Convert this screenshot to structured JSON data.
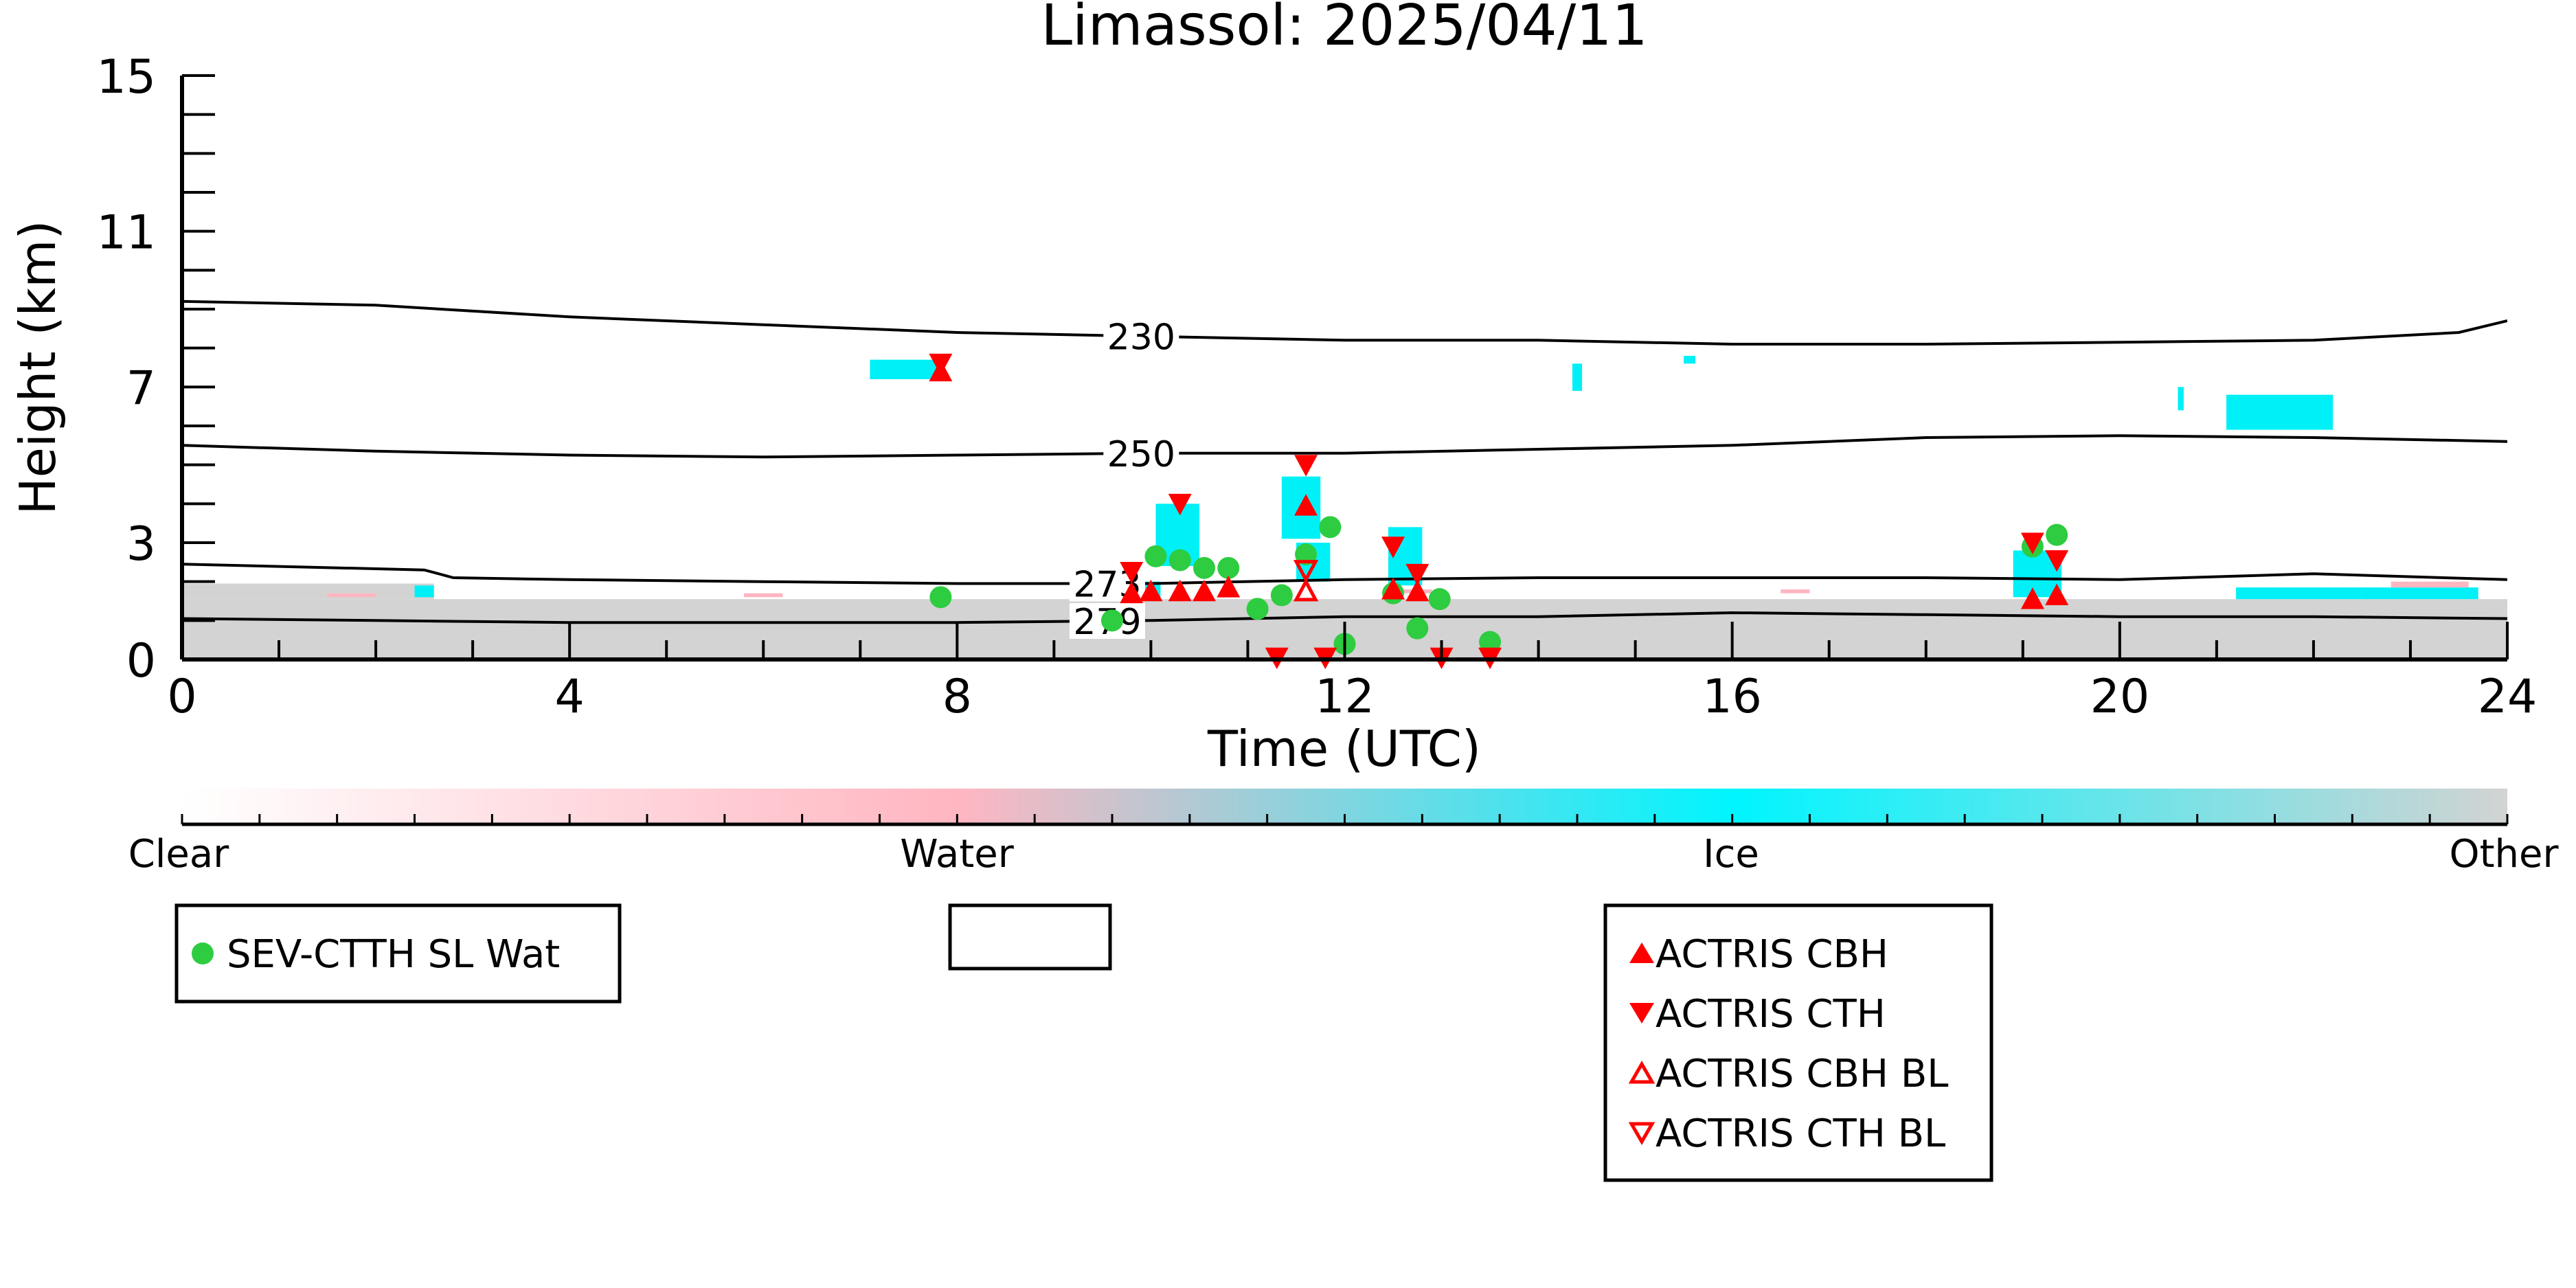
{
  "chart_data": {
    "type": "scatter",
    "title": "Limassol: 2025/04/11",
    "xlabel": "Time (UTC)",
    "ylabel": "Height (km)",
    "xlim": [
      0,
      24
    ],
    "ylim": [
      0,
      15
    ],
    "x_ticks": [
      0,
      4,
      8,
      12,
      16,
      20,
      24
    ],
    "y_ticks": [
      0,
      3,
      7,
      11,
      15
    ],
    "grid": false,
    "colorbar": {
      "labels": [
        "Clear",
        "Water",
        "Ice",
        "Other"
      ],
      "colors": [
        "#ffffff",
        "#ffb6c1",
        "#00f5ff",
        "#d3d3d3"
      ]
    },
    "colors": {
      "sev": "#2ecc40",
      "actris": "#ff0000",
      "ice": "#00f0f8",
      "water": "#ffb6c1",
      "other": "#d3d3d3"
    },
    "legends": [
      {
        "entries": [
          {
            "label": "SEV-CTTH SL Wat",
            "marker": "circle"
          }
        ]
      },
      {
        "entries": []
      },
      {
        "entries": [
          {
            "label": "ACTRIS CBH",
            "marker": "triangle-up"
          },
          {
            "label": "ACTRIS CTH",
            "marker": "triangle-down"
          },
          {
            "label": "ACTRIS CBH BL",
            "marker": "triangle-up-open"
          },
          {
            "label": "ACTRIS CTH BL",
            "marker": "triangle-down-open"
          }
        ]
      }
    ],
    "contours": [
      {
        "label": "230",
        "label_x": 9.9,
        "points": [
          [
            0,
            9.2
          ],
          [
            2,
            9.1
          ],
          [
            4,
            8.8
          ],
          [
            6,
            8.6
          ],
          [
            8,
            8.4
          ],
          [
            10,
            8.3
          ],
          [
            12,
            8.2
          ],
          [
            14,
            8.2
          ],
          [
            16,
            8.1
          ],
          [
            18,
            8.1
          ],
          [
            20,
            8.15
          ],
          [
            22,
            8.2
          ],
          [
            23.5,
            8.4
          ],
          [
            24,
            8.7
          ]
        ]
      },
      {
        "label": "250",
        "label_x": 9.9,
        "points": [
          [
            0,
            5.5
          ],
          [
            2,
            5.35
          ],
          [
            4,
            5.25
          ],
          [
            6,
            5.2
          ],
          [
            8,
            5.25
          ],
          [
            10,
            5.3
          ],
          [
            12,
            5.3
          ],
          [
            14,
            5.4
          ],
          [
            16,
            5.5
          ],
          [
            18,
            5.7
          ],
          [
            20,
            5.75
          ],
          [
            22,
            5.7
          ],
          [
            24,
            5.6
          ]
        ]
      },
      {
        "label": "273",
        "label_x": 9.55,
        "points": [
          [
            0,
            2.45
          ],
          [
            2.5,
            2.3
          ],
          [
            2.8,
            2.1
          ],
          [
            4,
            2.05
          ],
          [
            6,
            2.0
          ],
          [
            8,
            1.95
          ],
          [
            10,
            1.95
          ],
          [
            12,
            2.05
          ],
          [
            14,
            2.1
          ],
          [
            16,
            2.1
          ],
          [
            18,
            2.1
          ],
          [
            20,
            2.05
          ],
          [
            22,
            2.2
          ],
          [
            24,
            2.05
          ]
        ]
      },
      {
        "label": "279",
        "label_x": 9.55,
        "points": [
          [
            0,
            1.05
          ],
          [
            2,
            1.0
          ],
          [
            4,
            0.95
          ],
          [
            6,
            0.95
          ],
          [
            8,
            0.95
          ],
          [
            10,
            1.0
          ],
          [
            12,
            1.1
          ],
          [
            14,
            1.1
          ],
          [
            16,
            1.2
          ],
          [
            18,
            1.15
          ],
          [
            20,
            1.1
          ],
          [
            22,
            1.1
          ],
          [
            24,
            1.05
          ]
        ]
      }
    ],
    "series": [
      {
        "name": "SEV-CTTH SL Wat",
        "marker": "circle",
        "x": [
          7.83,
          9.6,
          10.05,
          10.3,
          10.55,
          10.8,
          11.1,
          11.35,
          11.6,
          11.85,
          12.0,
          12.5,
          12.75,
          12.98,
          13.5,
          19.1,
          19.35
        ],
        "y": [
          1.6,
          1.0,
          2.65,
          2.55,
          2.35,
          2.35,
          1.3,
          1.65,
          2.7,
          3.4,
          0.4,
          1.7,
          0.8,
          1.55,
          0.45,
          2.9,
          3.2
        ]
      },
      {
        "name": "ACTRIS CBH",
        "marker": "triangle-up",
        "x": [
          7.83,
          9.8,
          10.0,
          10.3,
          10.55,
          10.8,
          11.6,
          12.5,
          12.75,
          19.1,
          19.35
        ],
        "y": [
          7.4,
          1.7,
          1.75,
          1.75,
          1.75,
          1.85,
          3.95,
          1.8,
          1.75,
          1.55,
          1.65
        ]
      },
      {
        "name": "ACTRIS CTH",
        "marker": "triangle-down",
        "x": [
          7.83,
          9.8,
          10.3,
          11.6,
          12.5,
          12.75,
          11.3,
          11.8,
          13.0,
          13.5,
          19.1,
          19.35
        ],
        "y": [
          7.6,
          2.25,
          4.0,
          5.0,
          2.9,
          2.2,
          0.05,
          0.05,
          0.05,
          0.05,
          3.0,
          2.55
        ]
      },
      {
        "name": "ACTRIS CBH BL",
        "marker": "triangle-up-open",
        "x": [
          11.6
        ],
        "y": [
          1.75
        ]
      },
      {
        "name": "ACTRIS CTH BL",
        "marker": "triangle-down-open",
        "x": [
          11.6
        ],
        "y": [
          2.3
        ]
      }
    ]
  }
}
